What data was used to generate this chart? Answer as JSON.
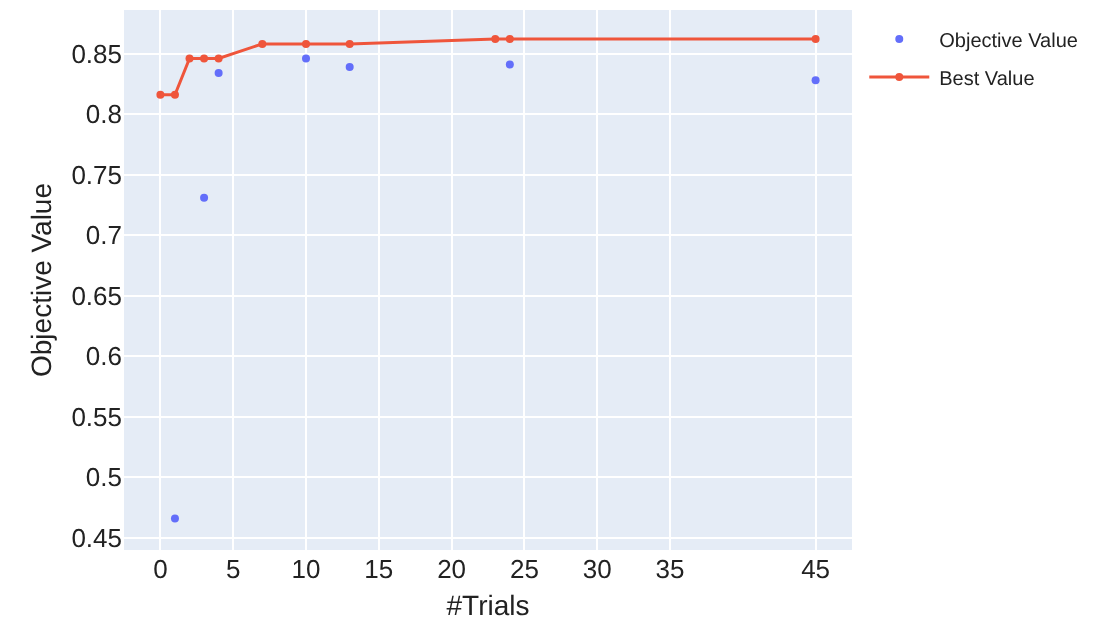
{
  "chart_data": {
    "type": "scatter",
    "xlabel": "#Trials",
    "ylabel": "Objective Value",
    "series": [
      {
        "name": "Objective Value",
        "color": "#636efa",
        "marker": "circle",
        "x": [
          1,
          3,
          4,
          10,
          13,
          24,
          45
        ],
        "values": [
          0.466,
          0.731,
          0.834,
          0.846,
          0.839,
          0.841,
          0.828
        ]
      },
      {
        "name": "Best Value",
        "type": "line",
        "color": "#ef553b",
        "marker": "circle",
        "x": [
          0,
          1,
          2,
          3,
          4,
          7,
          10,
          13,
          23,
          24,
          45
        ],
        "values": [
          0.816,
          0.816,
          0.846,
          0.846,
          0.846,
          0.858,
          0.858,
          0.858,
          0.862,
          0.862,
          0.862
        ]
      }
    ],
    "xlim": [
      -2.5,
      47.5
    ],
    "xticks": [
      0,
      5,
      10,
      15,
      20,
      25,
      30,
      35,
      45
    ],
    "ylim": [
      0.44,
      0.886
    ],
    "yticks": [
      0.45,
      0.5,
      0.55,
      0.6,
      0.65,
      0.7,
      0.75,
      0.8,
      0.85
    ],
    "grid": true,
    "legend": "top right"
  }
}
